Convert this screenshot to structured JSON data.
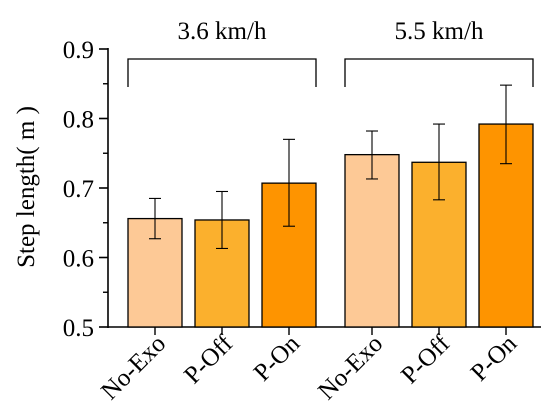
{
  "chart_data": {
    "type": "bar",
    "ylabel": "Step length( m )",
    "ylim": [
      0.5,
      0.9
    ],
    "yticks": [
      "0.5",
      "0.6",
      "0.7",
      "0.8",
      "0.9"
    ],
    "grid": false,
    "colors": [
      "#fdc996",
      "#fbb02d",
      "#fe9400"
    ],
    "groups": [
      {
        "label": "3.6 km/h",
        "bars": [
          {
            "category": "No-Exo",
            "value": 0.656,
            "err_low": 0.627,
            "err_high": 0.685
          },
          {
            "category": "P-Off",
            "value": 0.654,
            "err_low": 0.613,
            "err_high": 0.695
          },
          {
            "category": "P-On",
            "value": 0.707,
            "err_low": 0.645,
            "err_high": 0.77
          }
        ]
      },
      {
        "label": "5.5 km/h",
        "bars": [
          {
            "category": "No-Exo",
            "value": 0.748,
            "err_low": 0.713,
            "err_high": 0.782
          },
          {
            "category": "P-Off",
            "value": 0.737,
            "err_low": 0.683,
            "err_high": 0.792
          },
          {
            "category": "P-On",
            "value": 0.792,
            "err_low": 0.735,
            "err_high": 0.848
          }
        ]
      }
    ]
  }
}
